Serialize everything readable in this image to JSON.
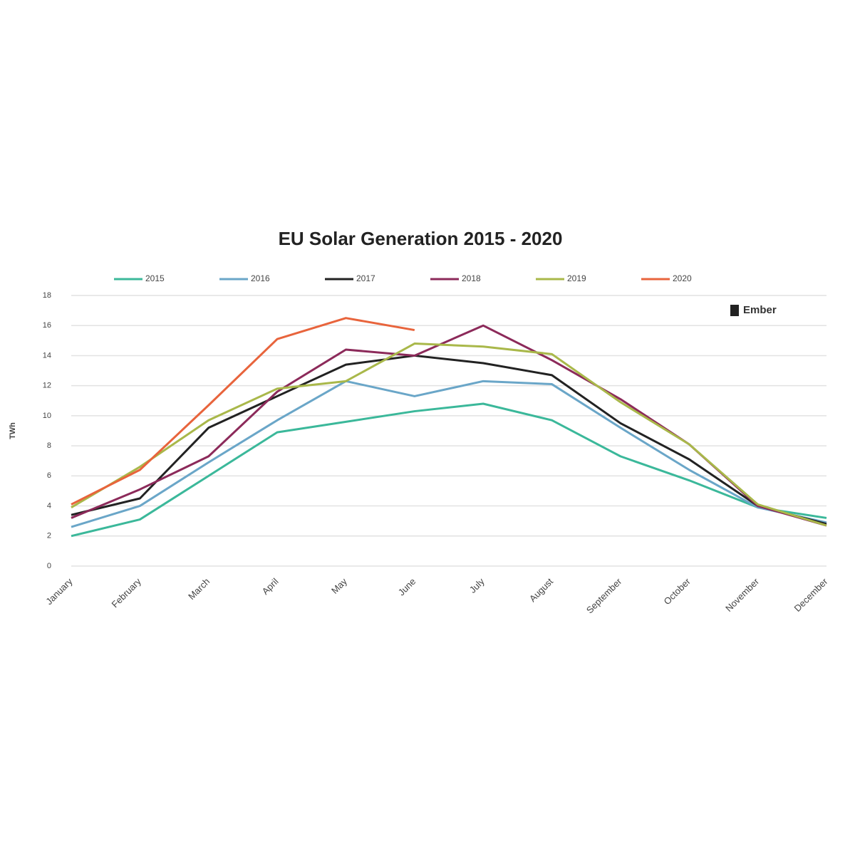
{
  "chart_data": {
    "type": "line",
    "title": "EU Solar Generation 2015 - 2020",
    "ylabel": "TWh",
    "watermark": "Ember",
    "categories": [
      "January",
      "February",
      "March",
      "April",
      "May",
      "June",
      "July",
      "August",
      "September",
      "October",
      "November",
      "December"
    ],
    "series": [
      {
        "name": "2015",
        "color": "#3bb89a",
        "values": [
          2.0,
          3.1,
          6.0,
          8.9,
          9.6,
          10.3,
          10.8,
          9.7,
          7.3,
          5.7,
          3.9,
          3.2
        ]
      },
      {
        "name": "2016",
        "color": "#6aa6c8",
        "values": [
          2.6,
          4.0,
          6.9,
          9.7,
          12.3,
          11.3,
          12.3,
          12.1,
          9.2,
          6.4,
          3.9,
          2.9
        ]
      },
      {
        "name": "2017",
        "color": "#222222",
        "values": [
          3.4,
          4.5,
          9.2,
          11.3,
          13.4,
          14.0,
          13.5,
          12.7,
          9.5,
          7.1,
          4.0,
          2.8
        ]
      },
      {
        "name": "2018",
        "color": "#8c2a5a",
        "values": [
          3.2,
          5.1,
          7.3,
          11.6,
          14.4,
          14.0,
          16.0,
          13.7,
          11.1,
          8.1,
          4.0,
          2.7
        ]
      },
      {
        "name": "2019",
        "color": "#a9b84a",
        "values": [
          3.9,
          6.6,
          9.7,
          11.8,
          12.3,
          14.8,
          14.6,
          14.1,
          10.9,
          8.1,
          4.1,
          2.7
        ]
      },
      {
        "name": "2020",
        "color": "#e8643c",
        "values": [
          4.1,
          6.4,
          10.7,
          15.1,
          16.5,
          15.7,
          null,
          null,
          null,
          null,
          null,
          null
        ]
      }
    ],
    "ylim": [
      0,
      18
    ],
    "yticks": [
      0,
      2,
      4,
      6,
      8,
      10,
      12,
      14,
      16,
      18
    ],
    "grid": true
  }
}
